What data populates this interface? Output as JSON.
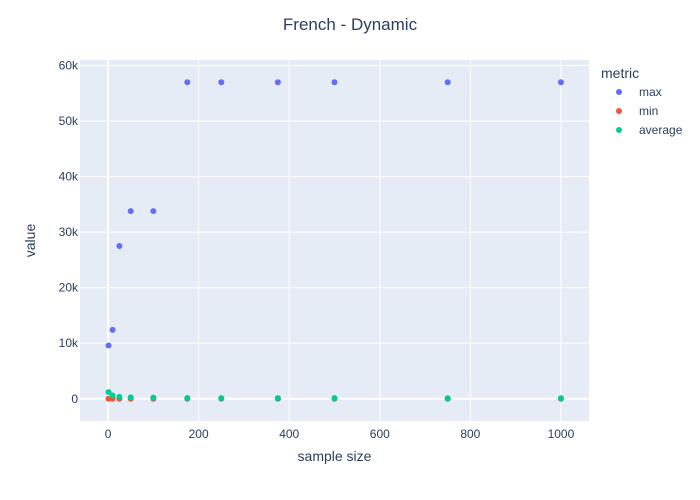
{
  "chart_data": {
    "type": "scatter",
    "title": "French - Dynamic",
    "xlabel": "sample size",
    "ylabel": "value",
    "xlim": [
      -62,
      1062
    ],
    "ylim": [
      -4000,
      61000
    ],
    "x_ticks": [
      0,
      200,
      400,
      600,
      800,
      1000
    ],
    "x_tick_labels": [
      "0",
      "200",
      "400",
      "600",
      "800",
      "1000"
    ],
    "y_ticks": [
      0,
      10000,
      20000,
      30000,
      40000,
      50000,
      60000
    ],
    "y_tick_labels": [
      "0",
      "10k",
      "20k",
      "30k",
      "40k",
      "50k",
      "60k"
    ],
    "grid": true,
    "legend_title": "metric",
    "legend_position": "right",
    "series": [
      {
        "name": "max",
        "color": "#636efa",
        "points": [
          {
            "x": 1,
            "y": 9600
          },
          {
            "x": 10,
            "y": 12400
          },
          {
            "x": 25,
            "y": 27500
          },
          {
            "x": 50,
            "y": 33800
          },
          {
            "x": 100,
            "y": 33800
          },
          {
            "x": 175,
            "y": 57000
          },
          {
            "x": 250,
            "y": 57000
          },
          {
            "x": 375,
            "y": 57000
          },
          {
            "x": 500,
            "y": 57000
          },
          {
            "x": 750,
            "y": 57000
          },
          {
            "x": 1000,
            "y": 57000
          }
        ]
      },
      {
        "name": "min",
        "color": "#ef553b",
        "points": [
          {
            "x": 1,
            "y": 10
          },
          {
            "x": 10,
            "y": 10
          },
          {
            "x": 25,
            "y": 10
          },
          {
            "x": 50,
            "y": 10
          },
          {
            "x": 100,
            "y": 10
          },
          {
            "x": 175,
            "y": 10
          },
          {
            "x": 250,
            "y": 10
          },
          {
            "x": 375,
            "y": 10
          },
          {
            "x": 500,
            "y": 10
          },
          {
            "x": 750,
            "y": 10
          },
          {
            "x": 1000,
            "y": 10
          }
        ]
      },
      {
        "name": "average",
        "color": "#00cc96",
        "points": [
          {
            "x": 1,
            "y": 1200
          },
          {
            "x": 10,
            "y": 600
          },
          {
            "x": 25,
            "y": 350
          },
          {
            "x": 50,
            "y": 250
          },
          {
            "x": 100,
            "y": 200
          },
          {
            "x": 175,
            "y": 150
          },
          {
            "x": 250,
            "y": 130
          },
          {
            "x": 375,
            "y": 120
          },
          {
            "x": 500,
            "y": 110
          },
          {
            "x": 750,
            "y": 100
          },
          {
            "x": 1000,
            "y": 100
          }
        ]
      }
    ]
  }
}
